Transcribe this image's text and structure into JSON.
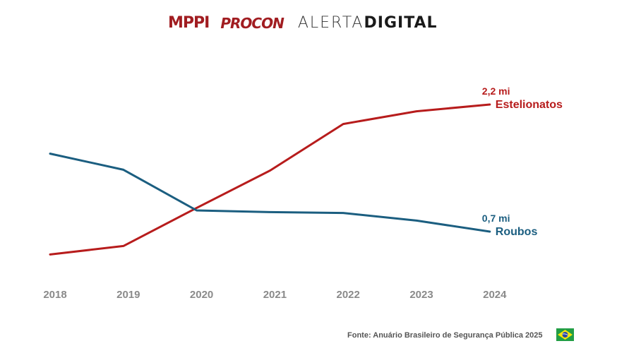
{
  "logos": {
    "mppi": "MPPI",
    "procon": "PROCON",
    "alerta_light": "ALERTA",
    "alerta_bold": "DIGITAL"
  },
  "chart_data": {
    "type": "line",
    "title": "",
    "xlabel": "",
    "ylabel": "",
    "categories": [
      "2018",
      "2019",
      "2020",
      "2021",
      "2022",
      "2023",
      "2024"
    ],
    "series": [
      {
        "name": "Estelionatos",
        "color": "#b71c1c",
        "values": [
          0.43,
          0.53,
          0.98,
          1.42,
          1.97,
          2.12,
          2.2
        ],
        "end_label": "2,2 mi"
      },
      {
        "name": "Roubos",
        "color": "#1b5e80",
        "values": [
          1.62,
          1.43,
          0.95,
          0.93,
          0.92,
          0.83,
          0.7
        ],
        "end_label": "0,7 mi"
      }
    ],
    "ylim": [
      0,
      2.7
    ],
    "grid": false,
    "legend": "inline at line ends"
  },
  "footer": {
    "source": "Fonte: Anuário Brasileiro de Segurança Pública 2025",
    "flag_icon": "brazil-flag-icon"
  }
}
